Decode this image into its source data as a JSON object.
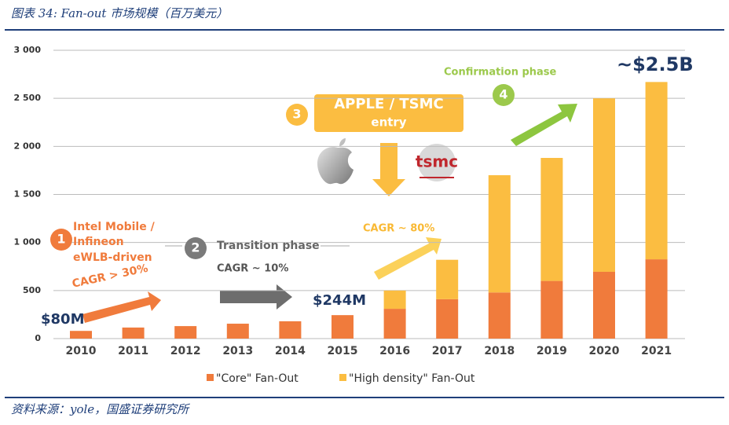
{
  "header": {
    "title": "图表 34: Fan-out 市场规模（百万美元）"
  },
  "chart_data": {
    "type": "stacked_bar",
    "categories": [
      "2010",
      "2011",
      "2012",
      "2013",
      "2014",
      "2015",
      "2016",
      "2017",
      "2018",
      "2019",
      "2020",
      "2021"
    ],
    "series": [
      {
        "name": "\"Core\" Fan-Out",
        "color": "#f07b3c",
        "values": [
          80,
          115,
          130,
          155,
          180,
          244,
          310,
          410,
          480,
          600,
          695,
          825
        ]
      },
      {
        "name": "\"High density\" Fan-Out",
        "color": "#fbbd41",
        "values": [
          0,
          0,
          0,
          0,
          0,
          0,
          190,
          410,
          1220,
          1280,
          1805,
          1845
        ]
      }
    ],
    "ylim": [
      0,
      3000
    ],
    "yticks": [
      0,
      500,
      {
        "value": 1000,
        "label": "1 000"
      },
      {
        "value": 1500,
        "label": "1 500"
      },
      {
        "value": 2000,
        "label": "2 000"
      },
      {
        "value": 2500,
        "label": "2 500"
      },
      {
        "value": 3000,
        "label": "3 000"
      }
    ],
    "grid": true,
    "annotations": [
      "$80M",
      "$244M",
      "~$2.5B",
      "Intel Mobile /",
      "Infineon",
      "eWLB-driven",
      "CAGR > 30%",
      "Transition phase",
      "CAGR ~ 10%",
      "APPLE / TSMC",
      "entry",
      "CAGR ~ 80%",
      "Confirmation phase",
      "1",
      "2",
      "3",
      "4",
      "tsmc"
    ]
  },
  "footer": {
    "source": "资料来源：yole，国盛证券研究所"
  }
}
